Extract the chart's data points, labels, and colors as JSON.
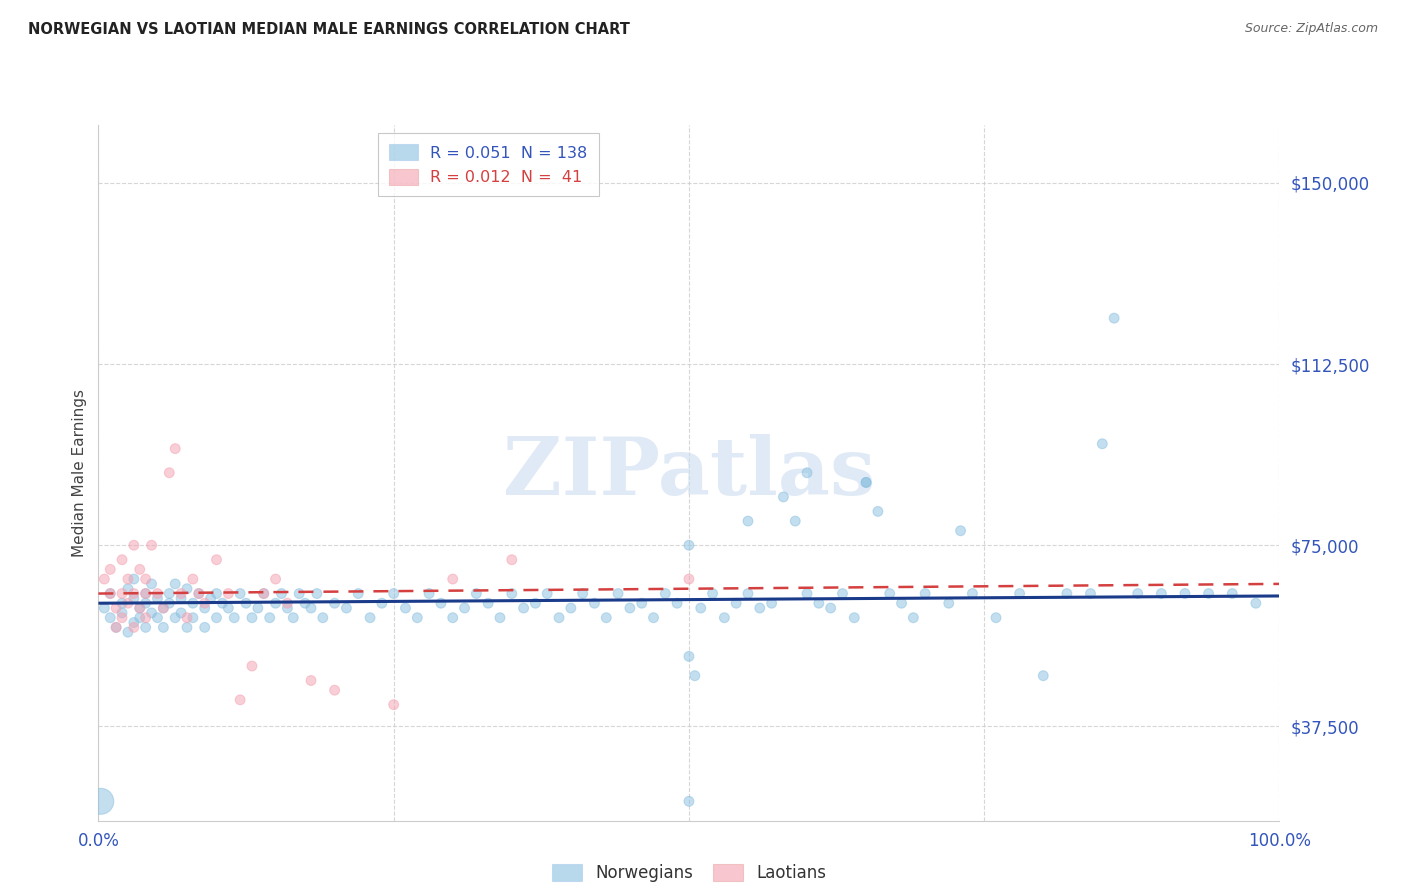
{
  "title": "NORWEGIAN VS LAOTIAN MEDIAN MALE EARNINGS CORRELATION CHART",
  "source": "Source: ZipAtlas.com",
  "ylabel": "Median Male Earnings",
  "ytick_labels": [
    "$37,500",
    "$75,000",
    "$112,500",
    "$150,000"
  ],
  "ytick_values": [
    37500,
    75000,
    112500,
    150000
  ],
  "ymin": 18000,
  "ymax": 162000,
  "xmin": 0.0,
  "xmax": 1.0,
  "norwegian_color": "#89bfdf",
  "laotian_color": "#f4a0b0",
  "trend_norwegian_color": "#1a3a8a",
  "trend_laotian_color": "#d43f3f",
  "watermark_text": "ZIPatlas",
  "watermark_color": "#ccddf0",
  "background_color": "#ffffff",
  "grid_color": "#cccccc",
  "axis_tick_color": "#3355bb",
  "norwegians_x": [
    0.005,
    0.01,
    0.01,
    0.015,
    0.02,
    0.02,
    0.025,
    0.025,
    0.03,
    0.03,
    0.03,
    0.035,
    0.035,
    0.04,
    0.04,
    0.04,
    0.045,
    0.045,
    0.05,
    0.05,
    0.055,
    0.055,
    0.06,
    0.06,
    0.065,
    0.065,
    0.07,
    0.07,
    0.075,
    0.075,
    0.08,
    0.08,
    0.085,
    0.09,
    0.09,
    0.095,
    0.1,
    0.1,
    0.105,
    0.11,
    0.115,
    0.12,
    0.125,
    0.13,
    0.135,
    0.14,
    0.145,
    0.15,
    0.155,
    0.16,
    0.165,
    0.17,
    0.175,
    0.18,
    0.185,
    0.19,
    0.2,
    0.21,
    0.22,
    0.23,
    0.24,
    0.25,
    0.26,
    0.27,
    0.28,
    0.29,
    0.3,
    0.31,
    0.32,
    0.33,
    0.34,
    0.35,
    0.36,
    0.37,
    0.38,
    0.39,
    0.4,
    0.41,
    0.42,
    0.43,
    0.44,
    0.45,
    0.46,
    0.47,
    0.48,
    0.49,
    0.5,
    0.505,
    0.51,
    0.52,
    0.53,
    0.54,
    0.55,
    0.56,
    0.57,
    0.58,
    0.59,
    0.6,
    0.61,
    0.62,
    0.63,
    0.64,
    0.65,
    0.66,
    0.67,
    0.68,
    0.69,
    0.7,
    0.72,
    0.74,
    0.76,
    0.78,
    0.8,
    0.82,
    0.84,
    0.86,
    0.88,
    0.9,
    0.92,
    0.94,
    0.96,
    0.98,
    0.85,
    0.73,
    0.6,
    0.55,
    0.5,
    0.65,
    0.002,
    0.5
  ],
  "norwegians_y": [
    62000,
    60000,
    65000,
    58000,
    63000,
    61000,
    57000,
    66000,
    64000,
    59000,
    68000,
    62000,
    60000,
    65000,
    63000,
    58000,
    61000,
    67000,
    64000,
    60000,
    62000,
    58000,
    65000,
    63000,
    60000,
    67000,
    64000,
    61000,
    58000,
    66000,
    63000,
    60000,
    65000,
    62000,
    58000,
    64000,
    60000,
    65000,
    63000,
    62000,
    60000,
    65000,
    63000,
    60000,
    62000,
    65000,
    60000,
    63000,
    65000,
    62000,
    60000,
    65000,
    63000,
    62000,
    65000,
    60000,
    63000,
    62000,
    65000,
    60000,
    63000,
    65000,
    62000,
    60000,
    65000,
    63000,
    60000,
    62000,
    65000,
    63000,
    60000,
    65000,
    62000,
    63000,
    65000,
    60000,
    62000,
    65000,
    63000,
    60000,
    65000,
    62000,
    63000,
    60000,
    65000,
    63000,
    52000,
    48000,
    62000,
    65000,
    60000,
    63000,
    65000,
    62000,
    63000,
    85000,
    80000,
    65000,
    63000,
    62000,
    65000,
    60000,
    88000,
    82000,
    65000,
    63000,
    60000,
    65000,
    63000,
    65000,
    60000,
    65000,
    48000,
    65000,
    65000,
    122000,
    65000,
    65000,
    65000,
    65000,
    65000,
    63000,
    96000,
    78000,
    90000,
    80000,
    75000,
    88000,
    22000,
    22000
  ],
  "norwegians_size": [
    50,
    50,
    50,
    50,
    50,
    50,
    50,
    50,
    50,
    50,
    50,
    50,
    50,
    50,
    50,
    50,
    50,
    50,
    50,
    50,
    50,
    50,
    50,
    50,
    50,
    50,
    50,
    50,
    50,
    50,
    50,
    50,
    50,
    50,
    50,
    50,
    50,
    50,
    50,
    50,
    50,
    50,
    50,
    50,
    50,
    50,
    50,
    50,
    50,
    50,
    50,
    50,
    50,
    50,
    50,
    50,
    50,
    50,
    50,
    50,
    50,
    50,
    50,
    50,
    50,
    50,
    50,
    50,
    50,
    50,
    50,
    50,
    50,
    50,
    50,
    50,
    50,
    50,
    50,
    50,
    50,
    50,
    50,
    50,
    50,
    50,
    50,
    50,
    50,
    50,
    50,
    50,
    50,
    50,
    50,
    50,
    50,
    50,
    50,
    50,
    50,
    50,
    50,
    50,
    50,
    50,
    50,
    50,
    50,
    50,
    50,
    50,
    50,
    50,
    50,
    50,
    50,
    50,
    50,
    50,
    50,
    50,
    50,
    50,
    50,
    50,
    50,
    50,
    350,
    50
  ],
  "laotians_x": [
    0.005,
    0.01,
    0.01,
    0.015,
    0.015,
    0.02,
    0.02,
    0.02,
    0.025,
    0.025,
    0.03,
    0.03,
    0.03,
    0.035,
    0.035,
    0.04,
    0.04,
    0.04,
    0.045,
    0.05,
    0.055,
    0.06,
    0.065,
    0.07,
    0.075,
    0.08,
    0.085,
    0.09,
    0.1,
    0.11,
    0.12,
    0.13,
    0.14,
    0.15,
    0.16,
    0.18,
    0.2,
    0.25,
    0.3,
    0.35,
    0.5
  ],
  "laotians_y": [
    68000,
    65000,
    70000,
    58000,
    62000,
    72000,
    65000,
    60000,
    68000,
    63000,
    75000,
    58000,
    65000,
    62000,
    70000,
    65000,
    68000,
    60000,
    75000,
    65000,
    62000,
    90000,
    95000,
    65000,
    60000,
    68000,
    65000,
    63000,
    72000,
    65000,
    43000,
    50000,
    65000,
    68000,
    63000,
    47000,
    45000,
    42000,
    68000,
    72000,
    68000
  ],
  "laotians_size": [
    50,
    50,
    50,
    50,
    50,
    50,
    50,
    50,
    50,
    50,
    50,
    50,
    50,
    50,
    50,
    50,
    50,
    50,
    50,
    50,
    50,
    50,
    50,
    50,
    50,
    50,
    50,
    50,
    50,
    50,
    50,
    50,
    50,
    50,
    50,
    50,
    50,
    50,
    50,
    50,
    50
  ],
  "nor_trend_x": [
    0.0,
    1.0
  ],
  "nor_trend_y": [
    63000,
    64500
  ],
  "lao_trend_x": [
    0.0,
    1.0
  ],
  "lao_trend_y": [
    65000,
    67000
  ]
}
